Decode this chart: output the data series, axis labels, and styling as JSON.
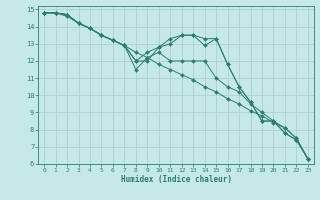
{
  "xlabel": "Humidex (Indice chaleur)",
  "bg_color": "#c5e8e8",
  "grid_color": "#aed0ce",
  "line_color": "#2e7d6e",
  "xlim": [
    -0.5,
    23.5
  ],
  "ylim": [
    6,
    15.2
  ],
  "yticks": [
    6,
    7,
    8,
    9,
    10,
    11,
    12,
    13,
    14,
    15
  ],
  "xticks": [
    0,
    1,
    2,
    3,
    4,
    5,
    6,
    7,
    8,
    9,
    10,
    11,
    12,
    13,
    14,
    15,
    16,
    17,
    18,
    19,
    20,
    21,
    22,
    23
  ],
  "series": [
    {
      "x": [
        0,
        1,
        2,
        3,
        4,
        5,
        6,
        7,
        8,
        9,
        10,
        11,
        12,
        13,
        14,
        15,
        16,
        17,
        18,
        19,
        20,
        21,
        22,
        23
      ],
      "y": [
        14.8,
        14.8,
        14.6,
        14.2,
        13.9,
        13.5,
        13.2,
        12.9,
        12.5,
        12.2,
        11.8,
        11.5,
        11.2,
        10.9,
        10.5,
        10.2,
        9.8,
        9.5,
        9.1,
        8.8,
        8.4,
        8.1,
        7.5,
        6.3
      ]
    },
    {
      "x": [
        0,
        1,
        2,
        3,
        4,
        5,
        6,
        7,
        8,
        9,
        10,
        11,
        12,
        13,
        14,
        15,
        16,
        17,
        18,
        19,
        20,
        21,
        22,
        23
      ],
      "y": [
        14.8,
        14.8,
        14.7,
        14.2,
        13.9,
        13.5,
        13.2,
        12.9,
        12.0,
        12.0,
        12.8,
        13.3,
        13.5,
        13.5,
        13.3,
        13.3,
        11.8,
        10.5,
        9.6,
        8.5,
        8.5,
        7.8,
        7.4,
        6.3
      ]
    },
    {
      "x": [
        0,
        1,
        2,
        3,
        4,
        5,
        6,
        7,
        8,
        9,
        10,
        11,
        12,
        13,
        14,
        15,
        16,
        17,
        18,
        19,
        20,
        21,
        22,
        23
      ],
      "y": [
        14.8,
        14.8,
        14.7,
        14.2,
        13.9,
        13.5,
        13.2,
        12.9,
        12.0,
        12.5,
        12.8,
        13.0,
        13.5,
        13.5,
        12.9,
        13.3,
        11.8,
        10.5,
        9.6,
        8.5,
        8.5,
        7.8,
        7.4,
        6.3
      ]
    },
    {
      "x": [
        0,
        1,
        2,
        3,
        4,
        5,
        6,
        7,
        8,
        9,
        10,
        11,
        12,
        13,
        14,
        15,
        16,
        17,
        18,
        19,
        20,
        21,
        22,
        23
      ],
      "y": [
        14.8,
        14.8,
        14.7,
        14.2,
        13.9,
        13.5,
        13.2,
        12.9,
        11.5,
        12.2,
        12.5,
        12.0,
        12.0,
        12.0,
        12.0,
        11.0,
        10.5,
        10.2,
        9.5,
        9.0,
        8.5,
        8.1,
        7.5,
        6.3
      ]
    }
  ]
}
